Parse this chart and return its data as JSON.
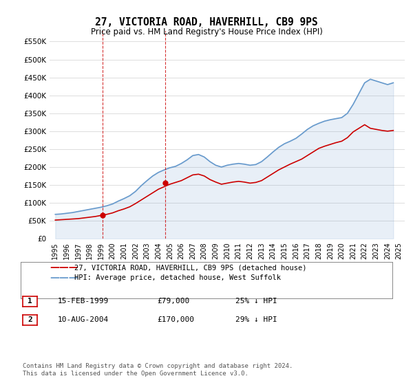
{
  "title": "27, VICTORIA ROAD, HAVERHILL, CB9 9PS",
  "subtitle": "Price paid vs. HM Land Registry's House Price Index (HPI)",
  "legend_line1": "27, VICTORIA ROAD, HAVERHILL, CB9 9PS (detached house)",
  "legend_line2": "HPI: Average price, detached house, West Suffolk",
  "footer": "Contains HM Land Registry data © Crown copyright and database right 2024.\nThis data is licensed under the Open Government Licence v3.0.",
  "transactions": [
    {
      "label": "1",
      "date": "15-FEB-1999",
      "price": "£79,000",
      "hpi": "25% ↓ HPI",
      "year": 1999.12
    },
    {
      "label": "2",
      "date": "10-AUG-2004",
      "price": "£170,000",
      "hpi": "29% ↓ HPI",
      "year": 2004.62
    }
  ],
  "red_line_color": "#cc0000",
  "blue_line_color": "#6699cc",
  "dashed_line_color": "#cc0000",
  "marker_color": "#cc0000",
  "background_color": "#ffffff",
  "grid_color": "#dddddd",
  "ylim": [
    0,
    580000
  ],
  "yticks": [
    0,
    50000,
    100000,
    150000,
    200000,
    250000,
    300000,
    350000,
    400000,
    450000,
    500000,
    550000
  ],
  "ytick_labels": [
    "£0",
    "£50K",
    "£100K",
    "£150K",
    "£200K",
    "£250K",
    "£300K",
    "£350K",
    "£400K",
    "£450K",
    "£500K",
    "£550K"
  ],
  "hpi_years": [
    1995,
    1995.5,
    1996,
    1996.5,
    1997,
    1997.5,
    1998,
    1998.5,
    1999,
    1999.5,
    2000,
    2000.5,
    2001,
    2001.5,
    2002,
    2002.5,
    2003,
    2003.5,
    2004,
    2004.5,
    2005,
    2005.5,
    2006,
    2006.5,
    2007,
    2007.5,
    2008,
    2008.5,
    2009,
    2009.5,
    2010,
    2010.5,
    2011,
    2011.5,
    2012,
    2012.5,
    2013,
    2013.5,
    2014,
    2014.5,
    2015,
    2015.5,
    2016,
    2016.5,
    2017,
    2017.5,
    2018,
    2018.5,
    2019,
    2019.5,
    2020,
    2020.5,
    2021,
    2021.5,
    2022,
    2022.5,
    2023,
    2023.5,
    2024,
    2024.5
  ],
  "hpi_values": [
    68000,
    69000,
    71000,
    73000,
    76000,
    79000,
    82000,
    85000,
    88000,
    92000,
    97000,
    105000,
    112000,
    120000,
    132000,
    148000,
    162000,
    175000,
    185000,
    192000,
    198000,
    202000,
    210000,
    220000,
    232000,
    235000,
    228000,
    215000,
    205000,
    200000,
    205000,
    208000,
    210000,
    208000,
    205000,
    207000,
    215000,
    228000,
    242000,
    255000,
    265000,
    272000,
    280000,
    292000,
    305000,
    315000,
    322000,
    328000,
    332000,
    335000,
    338000,
    350000,
    375000,
    405000,
    435000,
    445000,
    440000,
    435000,
    430000,
    435000
  ],
  "red_years": [
    1995,
    1995.5,
    1996,
    1996.5,
    1997,
    1997.5,
    1998,
    1998.5,
    1999,
    1999.5,
    2000,
    2000.5,
    2001,
    2001.5,
    2002,
    2002.5,
    2003,
    2003.5,
    2004,
    2004.5,
    2005,
    2005.5,
    2006,
    2006.5,
    2007,
    2007.5,
    2008,
    2008.5,
    2009,
    2009.5,
    2010,
    2010.5,
    2011,
    2011.5,
    2012,
    2012.5,
    2013,
    2013.5,
    2014,
    2014.5,
    2015,
    2015.5,
    2016,
    2016.5,
    2017,
    2017.5,
    2018,
    2018.5,
    2019,
    2019.5,
    2020,
    2020.5,
    2021,
    2021.5,
    2022,
    2022.5,
    2023,
    2023.5,
    2024,
    2024.5
  ],
  "red_values": [
    52000,
    53000,
    54000,
    55000,
    56000,
    58000,
    60000,
    62000,
    65000,
    68000,
    72000,
    78000,
    83000,
    89000,
    98000,
    108000,
    118000,
    128000,
    138000,
    145000,
    152000,
    157000,
    162000,
    170000,
    178000,
    180000,
    175000,
    165000,
    158000,
    152000,
    155000,
    158000,
    160000,
    158000,
    155000,
    157000,
    162000,
    172000,
    182000,
    192000,
    200000,
    208000,
    215000,
    222000,
    232000,
    242000,
    252000,
    258000,
    263000,
    268000,
    272000,
    282000,
    298000,
    308000,
    318000,
    308000,
    305000,
    302000,
    300000,
    302000
  ]
}
